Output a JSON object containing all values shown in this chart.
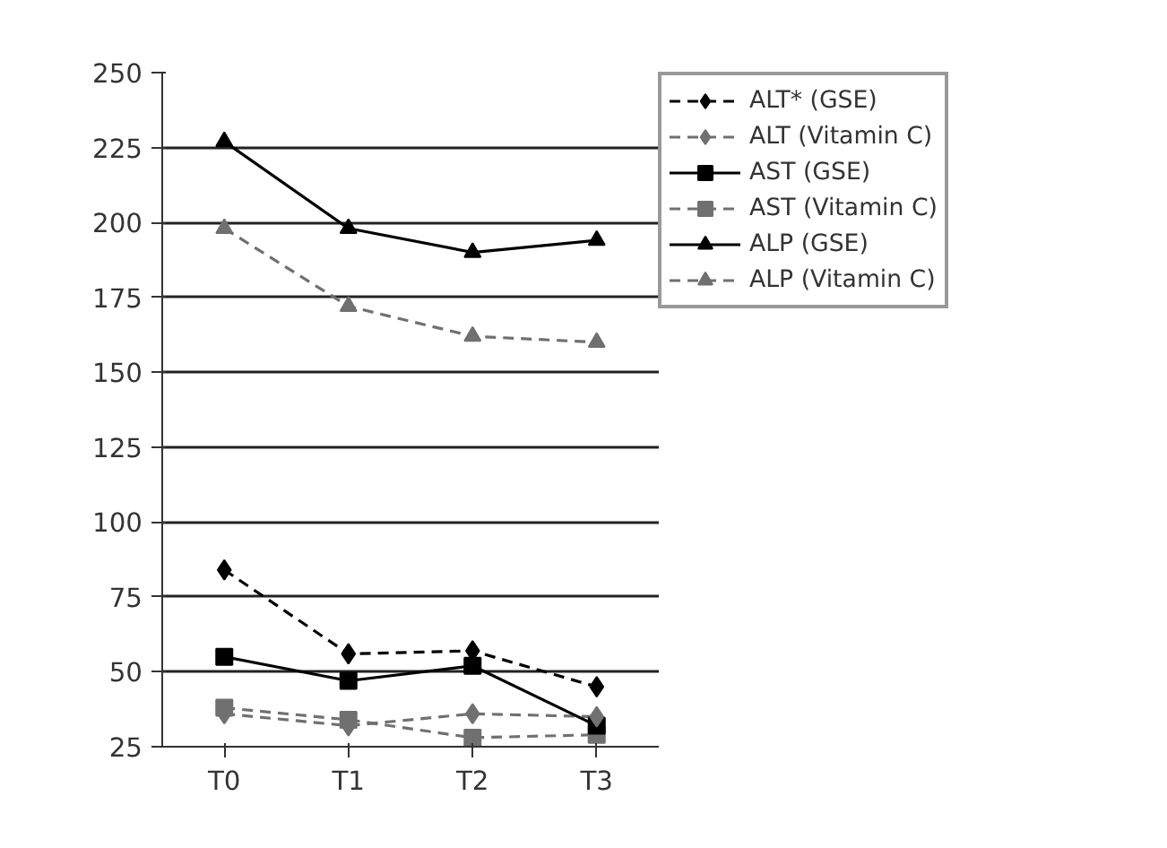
{
  "chart_data": {
    "type": "line",
    "categories": [
      "T0",
      "T1",
      "T2",
      "T3"
    ],
    "series": [
      {
        "name": "ALT* (GSE)",
        "color": "#000000",
        "marker": "diamond",
        "line_style": "dashed",
        "values": [
          84,
          56,
          57,
          45
        ]
      },
      {
        "name": "ALT (Vitamin C)",
        "color": "#707070",
        "marker": "diamond",
        "line_style": "dashed",
        "values": [
          36,
          32,
          36,
          35
        ]
      },
      {
        "name": "AST (GSE)",
        "color": "#000000",
        "marker": "square",
        "line_style": "solid",
        "values": [
          55,
          47,
          52,
          32
        ]
      },
      {
        "name": "AST (Vitamin C)",
        "color": "#707070",
        "marker": "square",
        "line_style": "dashed",
        "values": [
          38,
          34,
          28,
          29
        ]
      },
      {
        "name": "ALP (GSE)",
        "color": "#000000",
        "marker": "triangle",
        "line_style": "solid",
        "values": [
          227,
          198,
          190,
          194
        ]
      },
      {
        "name": "ALP (Vitamin C)",
        "color": "#707070",
        "marker": "triangle",
        "line_style": "dashed",
        "values": [
          198,
          172,
          162,
          160
        ]
      }
    ],
    "ylim": [
      25,
      250
    ],
    "yticks": [
      25,
      50,
      75,
      100,
      125,
      150,
      175,
      200,
      225,
      250
    ],
    "grid": "y",
    "legend": "top right"
  }
}
